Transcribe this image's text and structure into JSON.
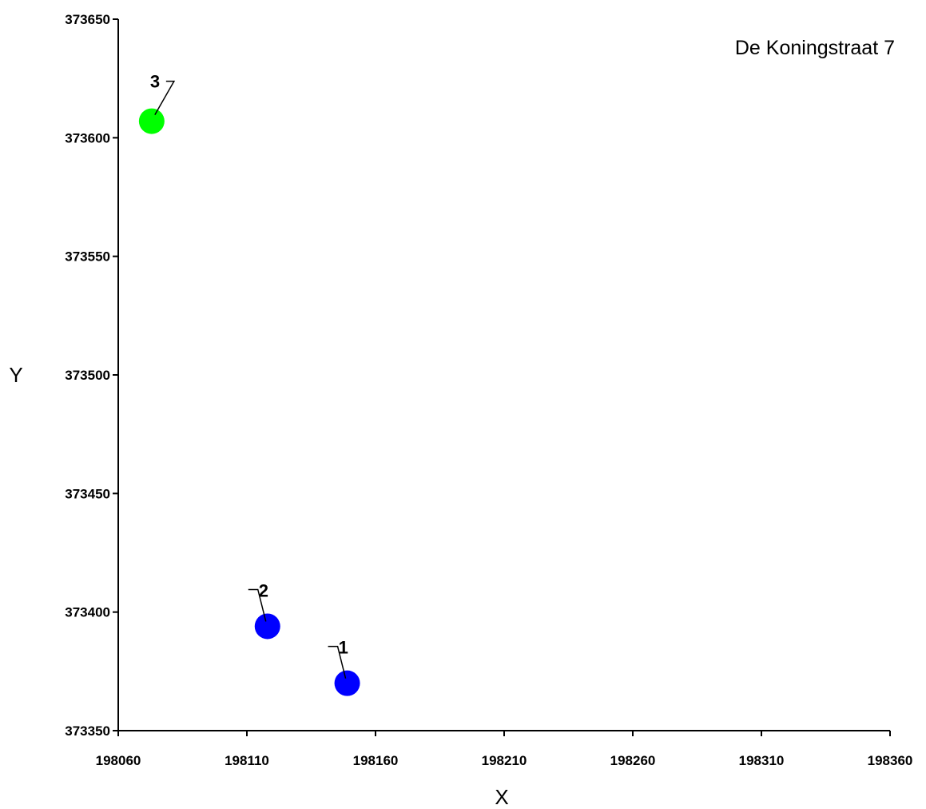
{
  "chart_data": {
    "type": "scatter",
    "title": "De Koningstraat 7",
    "xlabel": "X",
    "ylabel": "Y",
    "xlim": [
      198060,
      198360
    ],
    "ylim": [
      373350,
      373650
    ],
    "x_ticks": [
      "198060",
      "198110",
      "198160",
      "198210",
      "198260",
      "198310",
      "198360"
    ],
    "y_ticks": [
      "373350",
      "373400",
      "373450",
      "373500",
      "373550",
      "373600",
      "373650"
    ],
    "grid": false,
    "legend": "none",
    "points": [
      {
        "label": "1",
        "x": 198149,
        "y": 373370,
        "color": "#0000ff"
      },
      {
        "label": "2",
        "x": 198118,
        "y": 373394,
        "color": "#0000ff"
      },
      {
        "label": "3",
        "x": 198073,
        "y": 373607,
        "color": "#00ff00"
      }
    ]
  }
}
